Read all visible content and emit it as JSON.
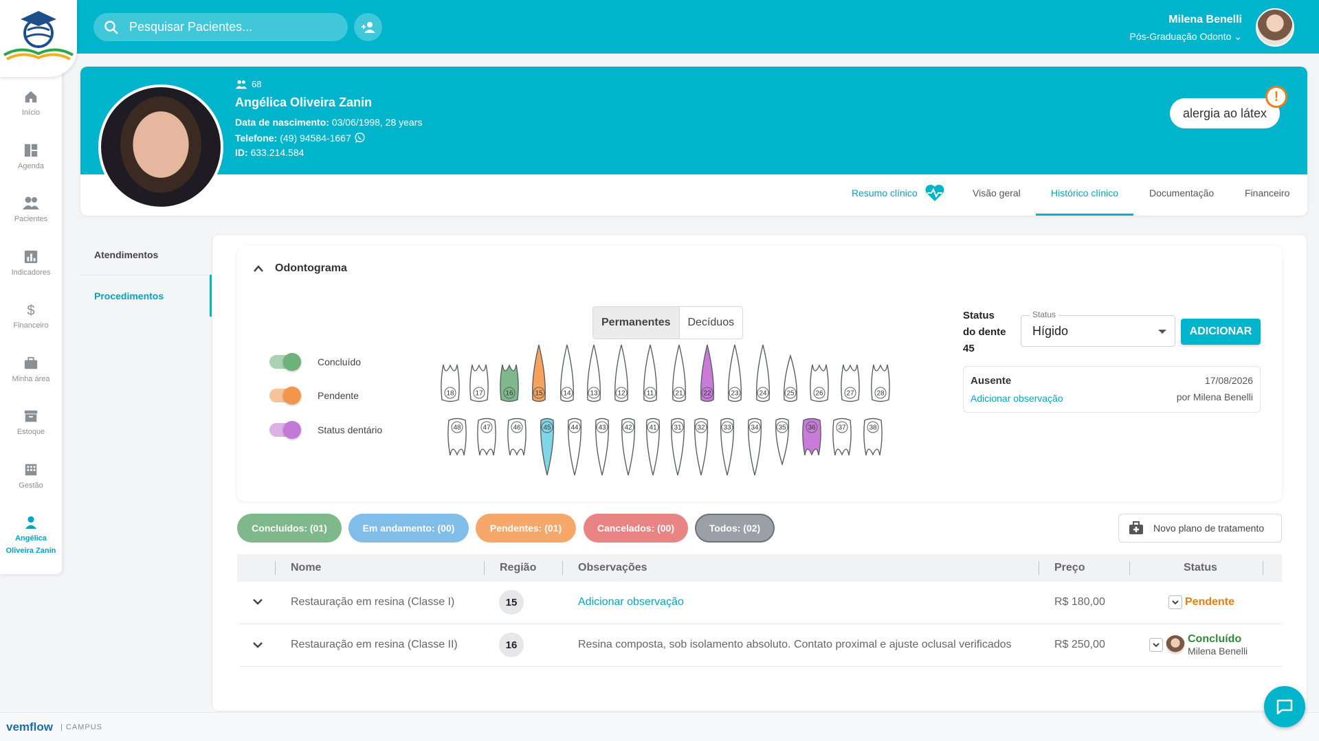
{
  "header": {
    "search_placeholder": "Pesquisar Pacientes...",
    "user_name": "Milena Benelli",
    "user_program": "Pós-Graduação Odonto"
  },
  "sidebar": {
    "items": [
      {
        "label": "Início",
        "icon": "home-icon"
      },
      {
        "label": "Agenda",
        "icon": "dashboard-icon"
      },
      {
        "label": "Pacientes",
        "icon": "people-icon"
      },
      {
        "label": "Indicadores",
        "icon": "chart-icon"
      },
      {
        "label": "Financeiro",
        "icon": "dollar-icon"
      },
      {
        "label": "Minha área",
        "icon": "briefcase-icon"
      },
      {
        "label": "Estoque",
        "icon": "archive-icon"
      },
      {
        "label": "Gestão",
        "icon": "building-icon"
      },
      {
        "label_line1": "Angélica",
        "label_line2": "Oliveira Zanin",
        "icon": "person-icon"
      }
    ]
  },
  "patient": {
    "count": "68",
    "name": "Angélica Oliveira Zanin",
    "birth_label": "Data de nascimento:",
    "birth_value": "03/06/1998, 28 years",
    "phone_label": "Telefone:",
    "phone_value": "(49) 94584-1667",
    "id_label": "ID:",
    "id_value": "633.214.584",
    "allergy": "alergia ao látex"
  },
  "tabs": {
    "resumo": "Resumo clínico",
    "visao": "Visão geral",
    "historico": "Histórico clínico",
    "documentacao": "Documentação",
    "financeiro": "Financeiro"
  },
  "submenu": {
    "atendimentos": "Atendimentos",
    "procedimentos": "Procedimentos"
  },
  "odontograma": {
    "title": "Odontograma",
    "legend": {
      "concluido": "Concluído",
      "pendente": "Pendente",
      "status_dentario": "Status dentário"
    },
    "toggle_permanentes": "Permanentes",
    "toggle_deciduos": "Decíduos",
    "upper_teeth": [
      "18",
      "17",
      "16",
      "15",
      "14",
      "13",
      "12",
      "11",
      "21",
      "22",
      "23",
      "24",
      "25",
      "26",
      "27",
      "28"
    ],
    "lower_teeth": [
      "48",
      "47",
      "46",
      "45",
      "44",
      "43",
      "42",
      "41",
      "31",
      "32",
      "33",
      "34",
      "35",
      "36",
      "37",
      "38"
    ],
    "colors": {
      "concluido": "#7fb88a",
      "pendente": "#f5a25d",
      "status": "#c97bd8",
      "selected": "#7fd6e4"
    },
    "status_line1": "Status",
    "status_line2": "do dente",
    "status_tooth": "45",
    "status_field_label": "Status",
    "status_value": "Hígido",
    "add_button": "ADICIONAR",
    "absent_title": "Ausente",
    "absent_date": "17/08/2026",
    "absent_link": "Adicionar observação",
    "absent_by": "por Milena Benelli"
  },
  "filters": {
    "concluidos": "Concluídos: (01)",
    "andamento": "Em andamento: (00)",
    "pendentes": "Pendentes: (01)",
    "cancelados": "Cancelados: (00)",
    "todos": "Todos: (02)",
    "new_plan": "Novo plano de tratamento"
  },
  "table": {
    "headers": {
      "nome": "Nome",
      "regiao": "Região",
      "observacoes": "Observações",
      "preco": "Preço",
      "status": "Status"
    },
    "rows": [
      {
        "nome": "Restauração em resina (Classe I)",
        "regiao": "15",
        "obs": "Adicionar observação",
        "preco": "R$ 180,00",
        "status": "Pendente"
      },
      {
        "nome": "Restauração em resina (Classe II)",
        "regiao": "16",
        "obs": "Resina composta, sob isolamento absoluto. Contato proximal e ajuste oclusal verificados",
        "preco": "R$ 250,00",
        "status": "Concluído",
        "by": "Milena Benelli"
      }
    ]
  },
  "footer": {
    "brand": "vemflow",
    "sub": "| CAMPUS"
  }
}
